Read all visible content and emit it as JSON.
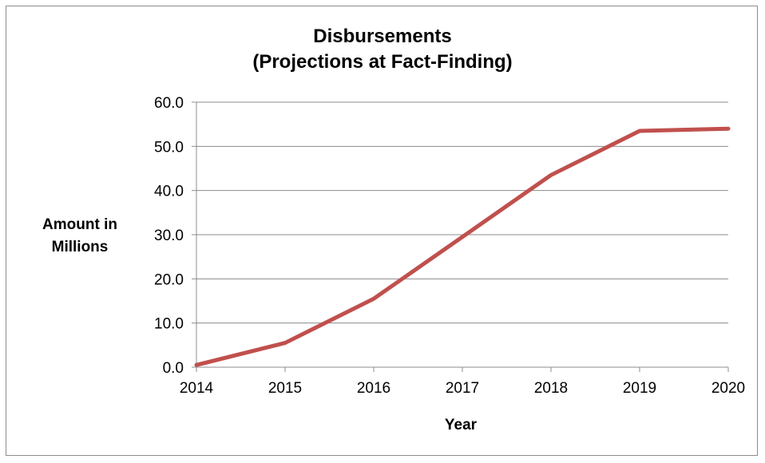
{
  "chart_data": {
    "type": "line",
    "title_line1": "Disbursements",
    "title_line2": "(Projections at Fact-Finding)",
    "xlabel": "Year",
    "ylabel_line1": "Amount in",
    "ylabel_line2": "Millions",
    "categories": [
      "2014",
      "2015",
      "2016",
      "2017",
      "2018",
      "2019",
      "2020"
    ],
    "y_tick_labels": [
      "0.0",
      "10.0",
      "20.0",
      "30.0",
      "40.0",
      "50.0",
      "60.0"
    ],
    "ylim": [
      0,
      60
    ],
    "grid": true,
    "legend": "none",
    "series": [
      {
        "values": [
          0.5,
          5.5,
          15.5,
          29.5,
          43.5,
          53.5,
          54.0
        ],
        "color": "#c0504d"
      }
    ]
  }
}
